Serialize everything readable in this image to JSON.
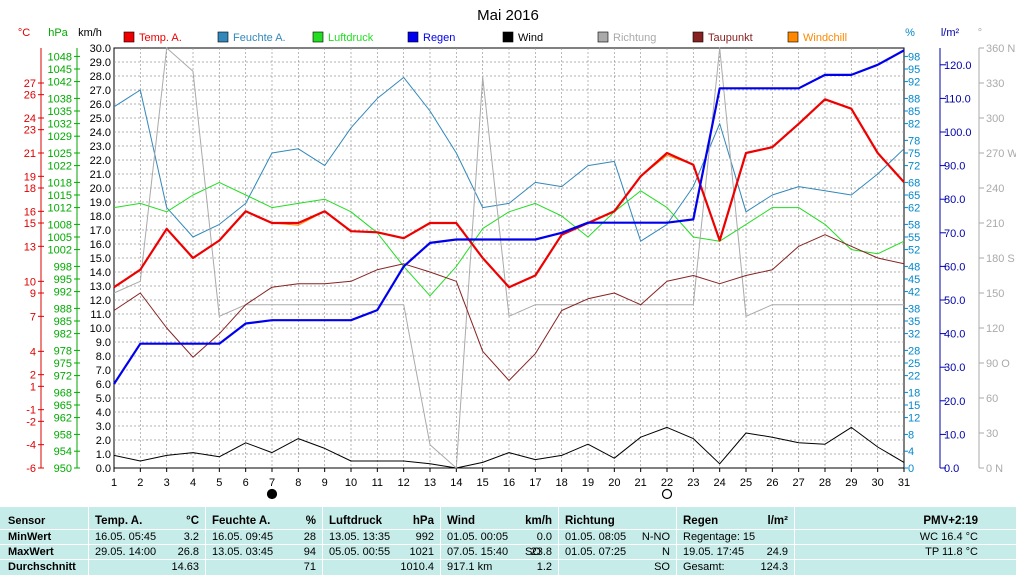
{
  "chart_data": {
    "type": "line",
    "title": "Mai 2016",
    "x": [
      1,
      2,
      3,
      4,
      5,
      6,
      7,
      8,
      9,
      10,
      11,
      12,
      13,
      14,
      15,
      16,
      17,
      18,
      19,
      20,
      21,
      22,
      23,
      24,
      25,
      26,
      27,
      28,
      29,
      30,
      31
    ],
    "xlim": [
      1,
      31
    ],
    "moon_markers": [
      {
        "day": 7,
        "phase": "new-moon"
      },
      {
        "day": 22,
        "phase": "full-moon"
      }
    ],
    "axes": [
      {
        "unit": "°C",
        "color": "#dd0000",
        "ylim": [
          -6,
          30
        ],
        "ticks": [
          -6.0,
          -4.0,
          -2.0,
          -1.0,
          1.0,
          2.0,
          4.0,
          7.0,
          9.0,
          10.0,
          13.0,
          15.0,
          16.0,
          18.0,
          19.0,
          21.0,
          23.0,
          24.0,
          26.0,
          27.0
        ]
      },
      {
        "unit": "hPa",
        "color": "#00aa00",
        "ylim": [
          950,
          1050
        ],
        "ticks": [
          950,
          954,
          958,
          962,
          965,
          968,
          972,
          975,
          978,
          982,
          985,
          988,
          992,
          995,
          998,
          1002,
          1005,
          1008,
          1012,
          1015,
          1018,
          1022,
          1025,
          1029,
          1032,
          1035,
          1038,
          1042,
          1045,
          1048
        ]
      },
      {
        "unit": "km/h",
        "color": "#000000",
        "ylim": [
          0,
          30
        ],
        "ticks": [
          "0.0",
          "1.0",
          "2.0",
          "3.0",
          "4.0",
          "5.0",
          "6.0",
          "7.0",
          "8.0",
          "9.0",
          "10.0",
          "11.0",
          "12.0",
          "13.0",
          "14.0",
          "15.0",
          "16.0",
          "17.0",
          "18.0",
          "19.0",
          "20.0",
          "21.0",
          "22.0",
          "23.0",
          "24.0",
          "25.0",
          "26.0",
          "27.0",
          "28.0",
          "29.0",
          "30.0"
        ]
      },
      {
        "unit": "%",
        "color": "#0088cc",
        "ylim": [
          0,
          100
        ],
        "ticks": [
          0,
          4,
          8,
          12,
          15,
          18,
          22,
          25,
          28,
          32,
          35,
          38,
          42,
          45,
          48,
          52,
          55,
          58,
          62,
          65,
          68,
          72,
          75,
          78,
          82,
          85,
          88,
          92,
          95,
          98
        ]
      },
      {
        "unit": "l/m²",
        "color": "#0000aa",
        "ylim": [
          0,
          125
        ],
        "ticks": [
          "0.0",
          "10.0",
          "20.0",
          "30.0",
          "40.0",
          "50.0",
          "60.0",
          "70.0",
          "80.0",
          "90.0",
          "100.0",
          "110.0",
          "120.0"
        ]
      },
      {
        "unit": "°",
        "color": "#aaaaaa",
        "ylim": [
          0,
          360
        ],
        "ticks": [
          "0 N",
          "30",
          "60",
          "90 O",
          "120",
          "150",
          "180 S",
          "210",
          "240",
          "270 W",
          "300",
          "330",
          "360 N"
        ]
      }
    ],
    "series": [
      {
        "name": "Temp. A.",
        "axis": "°C",
        "color": "#ee0000",
        "width": 2.2,
        "values": [
          9.5,
          11.0,
          14.5,
          12.0,
          13.5,
          16.0,
          15.0,
          15.0,
          16.0,
          14.3,
          14.2,
          13.7,
          15.0,
          15.0,
          12.0,
          9.5,
          10.5,
          14.0,
          15.0,
          16.0,
          19.0,
          21.0,
          20.0,
          13.5,
          21.0,
          21.5,
          23.5,
          25.6,
          24.8,
          21.0,
          18.5
        ]
      },
      {
        "name": "Feuchte A.",
        "axis": "%",
        "color": "#3388bb",
        "width": 1,
        "values": [
          86,
          90,
          62,
          55,
          58,
          63,
          75,
          76,
          72,
          81,
          88,
          93,
          85,
          75,
          62,
          63,
          68,
          67,
          72,
          73,
          54,
          58,
          67,
          82,
          61,
          65,
          67,
          66,
          65,
          70,
          76
        ]
      },
      {
        "name": "Luftdruck",
        "axis": "hPa",
        "color": "#22dd22",
        "width": 1,
        "values": [
          1012,
          1013,
          1011,
          1015,
          1018,
          1015,
          1012,
          1013,
          1014,
          1011,
          1006,
          998,
          991,
          998,
          1007,
          1011,
          1013,
          1010,
          1005,
          1011,
          1016,
          1012,
          1005,
          1004,
          1008,
          1012,
          1012,
          1008,
          1002,
          1001,
          1004
        ]
      },
      {
        "name": "Regen",
        "axis": "l/m²",
        "color": "#0000ee",
        "width": 2.2,
        "values": [
          25,
          37,
          37,
          37,
          37,
          43,
          44,
          44,
          44,
          44,
          47,
          60,
          67,
          68,
          68,
          68,
          68,
          70,
          73,
          73,
          73,
          73,
          74,
          113,
          113,
          113,
          113,
          117,
          117,
          120,
          124.3
        ]
      },
      {
        "name": "Wind",
        "axis": "km/h",
        "color": "#000000",
        "width": 1,
        "values": [
          0.9,
          0.5,
          0.9,
          1.1,
          0.8,
          1.8,
          1.1,
          2.1,
          1.4,
          0.5,
          0.5,
          0.5,
          0.3,
          0.0,
          0.4,
          1.1,
          0.6,
          0.9,
          1.7,
          0.7,
          2.2,
          2.9,
          2.1,
          0.3,
          2.5,
          2.2,
          1.8,
          1.7,
          2.9,
          1.5,
          0.4
        ]
      },
      {
        "name": "Richtung",
        "axis": "°",
        "color": "#aaaaaa",
        "width": 1,
        "values": [
          150,
          160,
          360,
          340,
          130,
          140,
          140,
          140,
          140,
          140,
          140,
          140,
          20,
          0,
          335,
          130,
          140,
          140,
          140,
          140,
          140,
          140,
          140,
          360,
          130,
          140,
          140,
          140,
          140,
          140,
          140
        ]
      },
      {
        "name": "Taupunkt",
        "axis": "°C",
        "color": "#882222",
        "width": 1,
        "values": [
          7.5,
          9.0,
          6.0,
          3.5,
          5.5,
          8.0,
          9.5,
          9.8,
          9.8,
          10.0,
          11.0,
          11.5,
          10.8,
          10.0,
          4.0,
          1.5,
          3.8,
          7.5,
          8.5,
          9.0,
          8.0,
          10.0,
          10.5,
          9.8,
          10.5,
          11.0,
          13.0,
          14.0,
          13.0,
          12.0,
          11.5
        ]
      },
      {
        "name": "Windchill",
        "axis": "°C",
        "color": "#ff8800",
        "width": 1,
        "values": [
          9.5,
          11.0,
          14.5,
          12.0,
          13.5,
          16.0,
          15.0,
          14.8,
          16.0,
          14.3,
          14.2,
          13.7,
          15.0,
          15.0,
          12.0,
          9.5,
          10.5,
          14.0,
          15.0,
          16.0,
          19.0,
          20.8,
          20.0,
          13.5,
          21.0,
          21.5,
          23.5,
          25.6,
          24.8,
          21.0,
          18.5
        ]
      }
    ]
  },
  "stats": {
    "labels": {
      "sensor": "Sensor",
      "min": "MinWert",
      "max": "MaxWert",
      "avg": "Durchschnitt"
    },
    "temp": {
      "title": "Temp. A.",
      "unit": "°C",
      "min_time": "16.05.  05:45",
      "min_val": "3.2",
      "max_time": "29.05.  14:00",
      "max_val": "26.8",
      "avg": "14.63"
    },
    "humidity": {
      "title": "Feuchte A.",
      "unit": "%",
      "min_time": "16.05.  09:45",
      "min_val": "28",
      "max_time": "13.05.  03:45",
      "max_val": "94",
      "avg": "71"
    },
    "pressure": {
      "title": "Luftdruck",
      "unit": "hPa",
      "min_time": "13.05.  13:35",
      "min_val": "992",
      "max_time": "05.05.  00:55",
      "max_val": "1021",
      "avg": "1010.4"
    },
    "wind": {
      "title": "Wind",
      "unit": "km/h",
      "min_time": "01.05.  00:05",
      "min_val": "0.0",
      "max_time": "07.05.  15:40",
      "max_dir": "SO",
      "max_val": "23.8",
      "avg_dist": "917.1 km",
      "avg": "1.2"
    },
    "direction": {
      "title": "Richtung",
      "min_time": "01.05.  08:05",
      "min_val": "N-NO",
      "max_time": "01.05.  07:25",
      "max_val": "N",
      "avg": "SO"
    },
    "rain": {
      "title": "Regen",
      "unit": "l/m²",
      "days_label": "Regentage: 15",
      "max_time": "19.05.  17:45",
      "max_val": "24.9",
      "total_label": "Gesamt:",
      "total": "124.3"
    },
    "pmv": {
      "title": "PMV+2:19",
      "wc": "WC 16.4 °C",
      "tp": "TP 11.8 °C"
    }
  }
}
